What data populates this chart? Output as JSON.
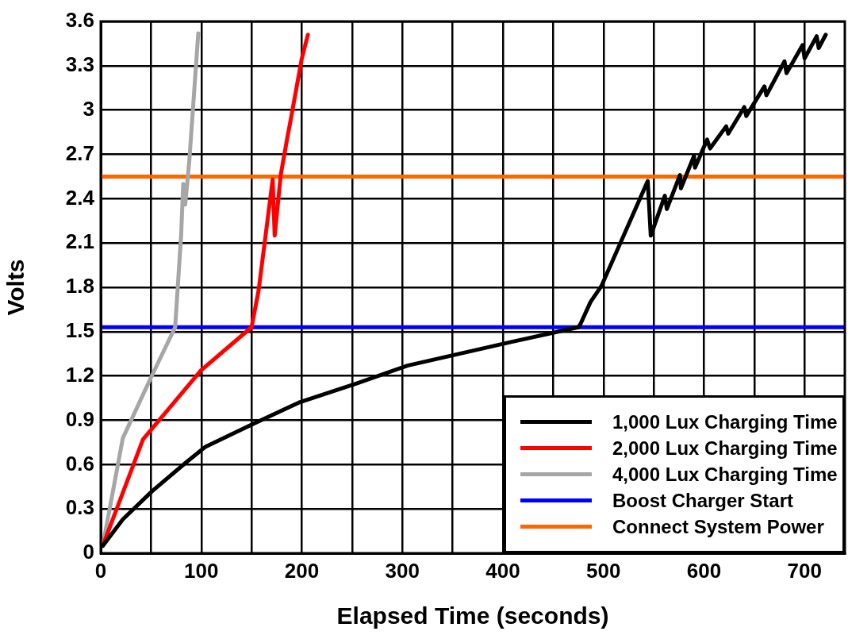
{
  "chart_data": {
    "type": "line",
    "xlabel": "Elapsed Time (seconds)",
    "ylabel": "Volts",
    "xlim": [
      0,
      740
    ],
    "xticks": [
      0,
      {
        "value": 50,
        "label": null
      },
      100,
      {
        "value": 150,
        "label": null
      },
      200,
      {
        "value": 250,
        "label": null
      },
      300,
      {
        "value": 350,
        "label": null
      },
      400,
      {
        "value": 450,
        "label": null
      },
      500,
      {
        "value": 550,
        "label": null
      },
      600,
      {
        "value": 650,
        "label": null
      },
      700
    ],
    "ylim": [
      0,
      3.6
    ],
    "yticks": [
      0,
      0.3,
      0.6,
      0.9,
      1.2,
      1.5,
      1.8,
      2.1,
      2.4,
      2.7,
      3,
      3.3,
      3.6
    ],
    "grid": true,
    "legend": "bottom right",
    "marker": "none",
    "line_style": "solid",
    "series": [
      {
        "name": "1,000 Lux Charging Time",
        "color": "#000000",
        "x": [
          2,
          22,
          51,
          84,
          104,
          150,
          197,
          255,
          305,
          408,
          475,
          477,
          487,
          498,
          544,
          547,
          561,
          563,
          576,
          577,
          590,
          591,
          603,
          606,
          622,
          624,
          640,
          642,
          660,
          662,
          680,
          682,
          698,
          700,
          712,
          714,
          721
        ],
        "values": [
          0.05,
          0.23,
          0.42,
          0.61,
          0.72,
          0.87,
          1.02,
          1.15,
          1.27,
          1.43,
          1.53,
          1.55,
          1.7,
          1.81,
          2.52,
          2.15,
          2.42,
          2.33,
          2.56,
          2.47,
          2.69,
          2.61,
          2.8,
          2.74,
          2.89,
          2.84,
          3.02,
          2.96,
          3.16,
          3.1,
          3.33,
          3.25,
          3.44,
          3.35,
          3.5,
          3.42,
          3.51
        ]
      },
      {
        "name": "2,000 Lux Charging Time",
        "color": "#ff0000",
        "x": [
          2,
          42,
          100,
          150,
          157,
          171,
          173,
          179,
          186,
          188,
          200,
          206
        ],
        "values": [
          0.05,
          0.77,
          1.24,
          1.53,
          1.78,
          2.53,
          2.15,
          2.56,
          2.83,
          2.9,
          3.35,
          3.51
        ]
      },
      {
        "name": "4,000 Lux Charging Time",
        "color": "#a6a6a6",
        "x": [
          2,
          22,
          50,
          74,
          80,
          82,
          84,
          88,
          97
        ],
        "values": [
          0.05,
          0.78,
          1.19,
          1.53,
          2.16,
          2.5,
          2.36,
          2.65,
          3.52
        ]
      }
    ],
    "ref_lines": [
      {
        "axis": "y",
        "value": 1.53,
        "label": "Boost Charger Start",
        "color": "#0000ff"
      },
      {
        "axis": "y",
        "value": 2.55,
        "label": "Connect System Power",
        "color": "#ff6600"
      }
    ]
  }
}
